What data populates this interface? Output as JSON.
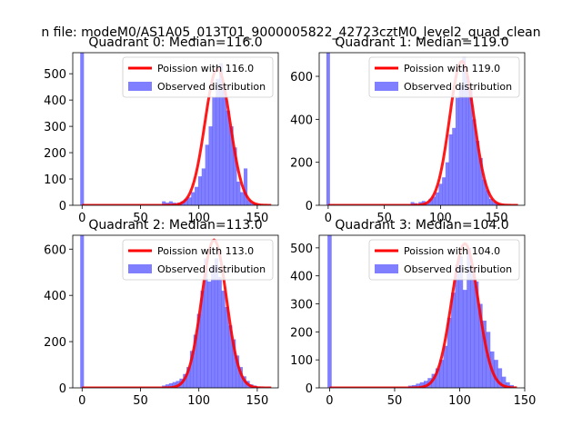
{
  "figure": {
    "suptitle": "n file: modeM0/AS1A05_013T01_9000005822_42723cztM0_level2_quad_clean"
  },
  "colors": {
    "hist": "#0000ff",
    "curve": "#ff0000",
    "tick": "#000000"
  },
  "chart_data": [
    {
      "type": "bar",
      "title": "Quadrant 0: Median=116.0",
      "xlim": [
        -8,
        168
      ],
      "ylim": [
        0,
        580
      ],
      "xticks": [
        0,
        50,
        100,
        150
      ],
      "yticks": [
        0,
        100,
        200,
        300,
        400,
        500
      ],
      "legend": {
        "position": "top-right",
        "entries": [
          "Poission with 116.0",
          "Observed distribution"
        ]
      },
      "median": 116,
      "curve_peak": 520,
      "bin_width": 3.2,
      "spike": {
        "x": 0,
        "value": 580
      },
      "histogram": [
        [
          70,
          15
        ],
        [
          73,
          10
        ],
        [
          76,
          15
        ],
        [
          79,
          10
        ],
        [
          83,
          10
        ],
        [
          86,
          15
        ],
        [
          89,
          25
        ],
        [
          92,
          30
        ],
        [
          95,
          50
        ],
        [
          98,
          70
        ],
        [
          101,
          110
        ],
        [
          104,
          140
        ],
        [
          107,
          230
        ],
        [
          110,
          300
        ],
        [
          113,
          410
        ],
        [
          116,
          480
        ],
        [
          119,
          540
        ],
        [
          122,
          450
        ],
        [
          125,
          360
        ],
        [
          128,
          300
        ],
        [
          131,
          220
        ],
        [
          134,
          90
        ],
        [
          137,
          50
        ],
        [
          140,
          140
        ],
        [
          143,
          20
        ],
        [
          146,
          10
        ],
        [
          149,
          5
        ],
        [
          152,
          5
        ]
      ]
    },
    {
      "type": "bar",
      "title": "Quadrant 1: Median=119.0",
      "xlim": [
        -8,
        175
      ],
      "ylim": [
        0,
        710
      ],
      "xticks": [
        0,
        50,
        100,
        150
      ],
      "yticks": [
        0,
        200,
        400,
        600
      ],
      "legend": {
        "position": "top-right",
        "entries": [
          "Poission with 119.0",
          "Observed distribution"
        ]
      },
      "median": 119,
      "curve_peak": 670,
      "bin_width": 3.2,
      "spike": {
        "x": 0,
        "value": 710
      },
      "histogram": [
        [
          75,
          15
        ],
        [
          78,
          10
        ],
        [
          82,
          15
        ],
        [
          85,
          20
        ],
        [
          88,
          10
        ],
        [
          91,
          30
        ],
        [
          94,
          40
        ],
        [
          97,
          60
        ],
        [
          100,
          100
        ],
        [
          103,
          130
        ],
        [
          106,
          200
        ],
        [
          109,
          330
        ],
        [
          112,
          360
        ],
        [
          115,
          500
        ],
        [
          118,
          560
        ],
        [
          121,
          690
        ],
        [
          124,
          600
        ],
        [
          127,
          540
        ],
        [
          130,
          400
        ],
        [
          133,
          300
        ],
        [
          136,
          220
        ],
        [
          139,
          120
        ],
        [
          142,
          70
        ],
        [
          145,
          30
        ],
        [
          148,
          15
        ],
        [
          151,
          10
        ],
        [
          154,
          5
        ]
      ]
    },
    {
      "type": "bar",
      "title": "Quadrant 2: Median=113.0",
      "xlim": [
        -8,
        168
      ],
      "ylim": [
        0,
        660
      ],
      "xticks": [
        0,
        50,
        100,
        150
      ],
      "yticks": [
        0,
        200,
        400,
        600
      ],
      "legend": {
        "position": "top-right",
        "entries": [
          "Poission with 113.0",
          "Observed distribution"
        ]
      },
      "median": 113,
      "curve_peak": 640,
      "bin_width": 3.2,
      "spike": {
        "x": 0,
        "value": 660
      },
      "histogram": [
        [
          70,
          10
        ],
        [
          73,
          15
        ],
        [
          76,
          20
        ],
        [
          79,
          25
        ],
        [
          82,
          30
        ],
        [
          85,
          40
        ],
        [
          88,
          60
        ],
        [
          91,
          90
        ],
        [
          94,
          160
        ],
        [
          97,
          230
        ],
        [
          100,
          320
        ],
        [
          103,
          420
        ],
        [
          106,
          560
        ],
        [
          109,
          460
        ],
        [
          112,
          530
        ],
        [
          115,
          560
        ],
        [
          118,
          480
        ],
        [
          121,
          420
        ],
        [
          124,
          350
        ],
        [
          127,
          270
        ],
        [
          130,
          210
        ],
        [
          133,
          140
        ],
        [
          136,
          90
        ],
        [
          139,
          50
        ],
        [
          142,
          30
        ],
        [
          145,
          15
        ],
        [
          148,
          10
        ],
        [
          151,
          5
        ]
      ]
    },
    {
      "type": "bar",
      "title": "Quadrant 3: Median=104.0",
      "xlim": [
        -8,
        150
      ],
      "ylim": [
        0,
        545
      ],
      "xticks": [
        0,
        50,
        100,
        150
      ],
      "yticks": [
        0,
        100,
        200,
        300,
        400,
        500
      ],
      "legend": {
        "position": "top-right",
        "entries": [
          "Poission with 104.0",
          "Observed distribution"
        ]
      },
      "median": 104,
      "curve_peak": 515,
      "bin_width": 3.2,
      "spike": {
        "x": 0,
        "value": 545
      },
      "histogram": [
        [
          62,
          8
        ],
        [
          65,
          10
        ],
        [
          68,
          15
        ],
        [
          71,
          20
        ],
        [
          74,
          25
        ],
        [
          77,
          35
        ],
        [
          80,
          50
        ],
        [
          83,
          70
        ],
        [
          86,
          100
        ],
        [
          89,
          150
        ],
        [
          92,
          250
        ],
        [
          95,
          340
        ],
        [
          98,
          440
        ],
        [
          101,
          470
        ],
        [
          104,
          350
        ],
        [
          107,
          500
        ],
        [
          110,
          420
        ],
        [
          113,
          380
        ],
        [
          116,
          300
        ],
        [
          119,
          240
        ],
        [
          122,
          200
        ],
        [
          125,
          130
        ],
        [
          128,
          100
        ],
        [
          131,
          70
        ],
        [
          134,
          40
        ],
        [
          137,
          20
        ],
        [
          140,
          10
        ]
      ]
    }
  ]
}
